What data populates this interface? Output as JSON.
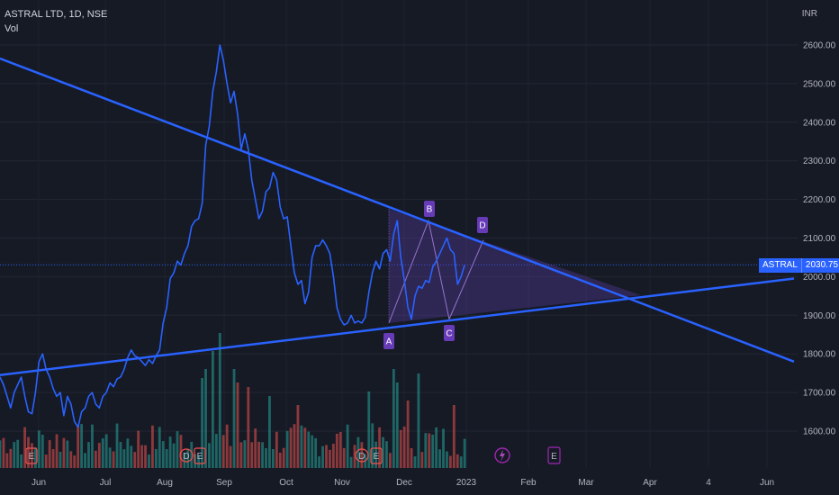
{
  "legend": {
    "title": "ASTRAL LTD, 1D, NSE",
    "volume_label": "Vol"
  },
  "currency": "INR",
  "last_price": {
    "symbol": "ASTRAL",
    "value": "2030.75",
    "price": 2030.75
  },
  "colors": {
    "background": "#161a25",
    "price_line": "#2962ff",
    "trendline": "#2962ff",
    "pattern_fill": "#5b3fa8",
    "vol_up": "#26a69a",
    "vol_down": "#ef5350",
    "badge": "#673ab7"
  },
  "chart_data": {
    "type": "line",
    "y_ticks": [
      "2600.00",
      "2500.00",
      "2400.00",
      "2300.00",
      "2200.00",
      "2100.00",
      "2000.00",
      "1900.00",
      "1800.00",
      "1700.00",
      "1600.00"
    ],
    "x_ticks": [
      "Jun",
      "Jul",
      "Aug",
      "Sep",
      "Oct",
      "Nov",
      "Dec",
      "2023",
      "Feb",
      "Mar",
      "Apr",
      "4",
      "Jun"
    ],
    "ylim": [
      1540,
      2680
    ],
    "series": [
      {
        "values": [
          [
            "Jun",
            1740
          ],
          [
            "Jun",
            1720
          ],
          [
            "Jun",
            1690
          ],
          [
            "Jun",
            1660
          ],
          [
            "Jun",
            1700
          ],
          [
            "Jun",
            1720
          ],
          [
            "Jun",
            1740
          ],
          [
            "Jun",
            1690
          ],
          [
            "Jun",
            1650
          ],
          [
            "Jun",
            1645
          ],
          [
            "Jun",
            1700
          ],
          [
            "Jun",
            1780
          ],
          [
            "Jun",
            1800
          ],
          [
            "Jun",
            1760
          ],
          [
            "Jun",
            1740
          ],
          [
            "Jun",
            1710
          ],
          [
            "Jun",
            1690
          ],
          [
            "Jun",
            1700
          ],
          [
            "Jun",
            1640
          ],
          [
            "Jun",
            1690
          ],
          [
            "Jun",
            1670
          ],
          [
            "Jun",
            1625
          ],
          [
            "Jun",
            1610
          ],
          [
            "Jun",
            1650
          ],
          [
            "Jun",
            1660
          ],
          [
            "Jun",
            1690
          ],
          [
            "Jun",
            1700
          ],
          [
            "Jun",
            1670
          ],
          [
            "Jun",
            1660
          ],
          [
            "Jun",
            1690
          ],
          [
            "Jul",
            1700
          ],
          [
            "Jul",
            1725
          ],
          [
            "Jul",
            1715
          ],
          [
            "Jul",
            1735
          ],
          [
            "Jul",
            1740
          ],
          [
            "Jul",
            1760
          ],
          [
            "Jul",
            1790
          ],
          [
            "Jul",
            1810
          ],
          [
            "Jul",
            1795
          ],
          [
            "Jul",
            1790
          ],
          [
            "Jul",
            1780
          ],
          [
            "Jul",
            1770
          ],
          [
            "Jul",
            1785
          ],
          [
            "Jul",
            1775
          ],
          [
            "Jul",
            1795
          ],
          [
            "Jul",
            1810
          ],
          [
            "Jul",
            1880
          ],
          [
            "Jul",
            1920
          ],
          [
            "Jul",
            1995
          ],
          [
            "Jul",
            2010
          ],
          [
            "Aug",
            2040
          ],
          [
            "Aug",
            2030
          ],
          [
            "Aug",
            2060
          ],
          [
            "Aug",
            2080
          ],
          [
            "Aug",
            2130
          ],
          [
            "Aug",
            2145
          ],
          [
            "Aug",
            2150
          ],
          [
            "Aug",
            2190
          ],
          [
            "Aug",
            2340
          ],
          [
            "Aug",
            2390
          ],
          [
            "Aug",
            2480
          ],
          [
            "Aug",
            2530
          ],
          [
            "Aug",
            2600
          ],
          [
            "Aug",
            2560
          ],
          [
            "Aug",
            2500
          ],
          [
            "Aug",
            2450
          ],
          [
            "Aug",
            2480
          ],
          [
            "Aug",
            2420
          ],
          [
            "Aug",
            2330
          ],
          [
            "Aug",
            2370
          ],
          [
            "Sep",
            2330
          ],
          [
            "Sep",
            2250
          ],
          [
            "Sep",
            2200
          ],
          [
            "Sep",
            2150
          ],
          [
            "Sep",
            2170
          ],
          [
            "Sep",
            2220
          ],
          [
            "Sep",
            2230
          ],
          [
            "Sep",
            2270
          ],
          [
            "Sep",
            2250
          ],
          [
            "Sep",
            2180
          ],
          [
            "Sep",
            2150
          ],
          [
            "Sep",
            2155
          ],
          [
            "Sep",
            2080
          ],
          [
            "Sep",
            2010
          ],
          [
            "Sep",
            1980
          ],
          [
            "Sep",
            1990
          ],
          [
            "Sep",
            1930
          ],
          [
            "Sep",
            1960
          ],
          [
            "Sep",
            2050
          ],
          [
            "Sep",
            2080
          ],
          [
            "Oct",
            2080
          ],
          [
            "Oct",
            2095
          ],
          [
            "Oct",
            2080
          ],
          [
            "Oct",
            2060
          ],
          [
            "Oct",
            2000
          ],
          [
            "Oct",
            1920
          ],
          [
            "Oct",
            1890
          ],
          [
            "Oct",
            1875
          ],
          [
            "Oct",
            1880
          ],
          [
            "Oct",
            1900
          ],
          [
            "Nov",
            1880
          ],
          [
            "Nov",
            1885
          ],
          [
            "Nov",
            1880
          ],
          [
            "Nov",
            1895
          ],
          [
            "Nov",
            1960
          ],
          [
            "Nov",
            2010
          ],
          [
            "Nov",
            2040
          ],
          [
            "Nov",
            2020
          ],
          [
            "Nov",
            2060
          ],
          [
            "Nov",
            2070
          ],
          [
            "Nov",
            2040
          ],
          [
            "Nov",
            2110
          ],
          [
            "Nov",
            2145
          ],
          [
            "Dec",
            2050
          ],
          [
            "Dec",
            1990
          ],
          [
            "Dec",
            1920
          ],
          [
            "Dec",
            1890
          ],
          [
            "Dec",
            1950
          ],
          [
            "Dec",
            1975
          ],
          [
            "Dec",
            1970
          ],
          [
            "Dec",
            1990
          ],
          [
            "Dec",
            1985
          ],
          [
            "Dec",
            2025
          ],
          [
            "Dec",
            2040
          ],
          [
            "Dec",
            2060
          ],
          [
            "Dec",
            2080
          ],
          [
            "Dec",
            2100
          ],
          [
            "Dec",
            2070
          ],
          [
            "Dec",
            2060
          ],
          [
            "Dec",
            1980
          ],
          [
            "2023",
            2000
          ],
          [
            "2023",
            2030
          ]
        ]
      }
    ],
    "volume": [],
    "pattern": {
      "points": [
        "A",
        "B",
        "C",
        "D"
      ]
    },
    "event_markers": [
      "E",
      "D",
      "E",
      "D",
      "E"
    ]
  }
}
